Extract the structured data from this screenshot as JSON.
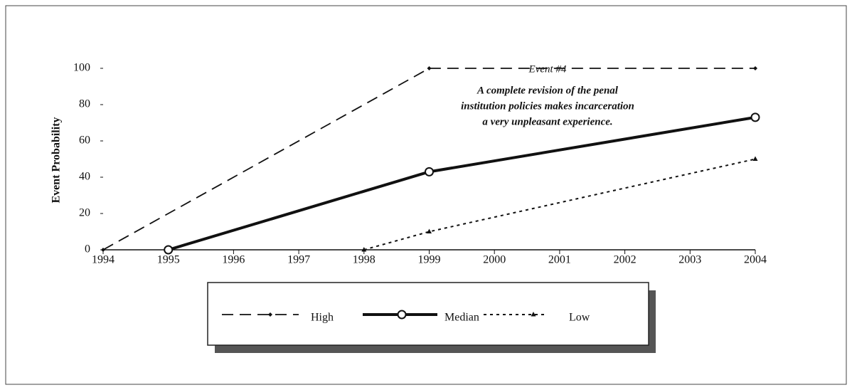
{
  "chart_data": {
    "type": "line",
    "y_label": "Event Probability",
    "xlim": [
      1994,
      2004
    ],
    "xticks": [
      1994,
      1995,
      1996,
      1997,
      1998,
      1999,
      2000,
      2001,
      2002,
      2003,
      2004
    ],
    "ylim": [
      0,
      100
    ],
    "yticks": [
      0,
      20,
      40,
      60,
      80,
      100
    ],
    "annotation": {
      "title": "Event #4",
      "lines": [
        "A complete revision of the penal",
        "institution policies makes incarceration",
        "a very unpleasant experience."
      ]
    },
    "series": [
      {
        "name": "High",
        "color": "#111111",
        "x": [
          1994,
          1999,
          2004
        ],
        "values": [
          0,
          100,
          100
        ]
      },
      {
        "name": "Median",
        "color": "#111111",
        "x": [
          1995,
          1999,
          2004
        ],
        "values": [
          0,
          43,
          73
        ]
      },
      {
        "name": "Low",
        "color": "#111111",
        "x": [
          1998,
          1999,
          2004
        ],
        "values": [
          0,
          10,
          50
        ]
      }
    ]
  }
}
